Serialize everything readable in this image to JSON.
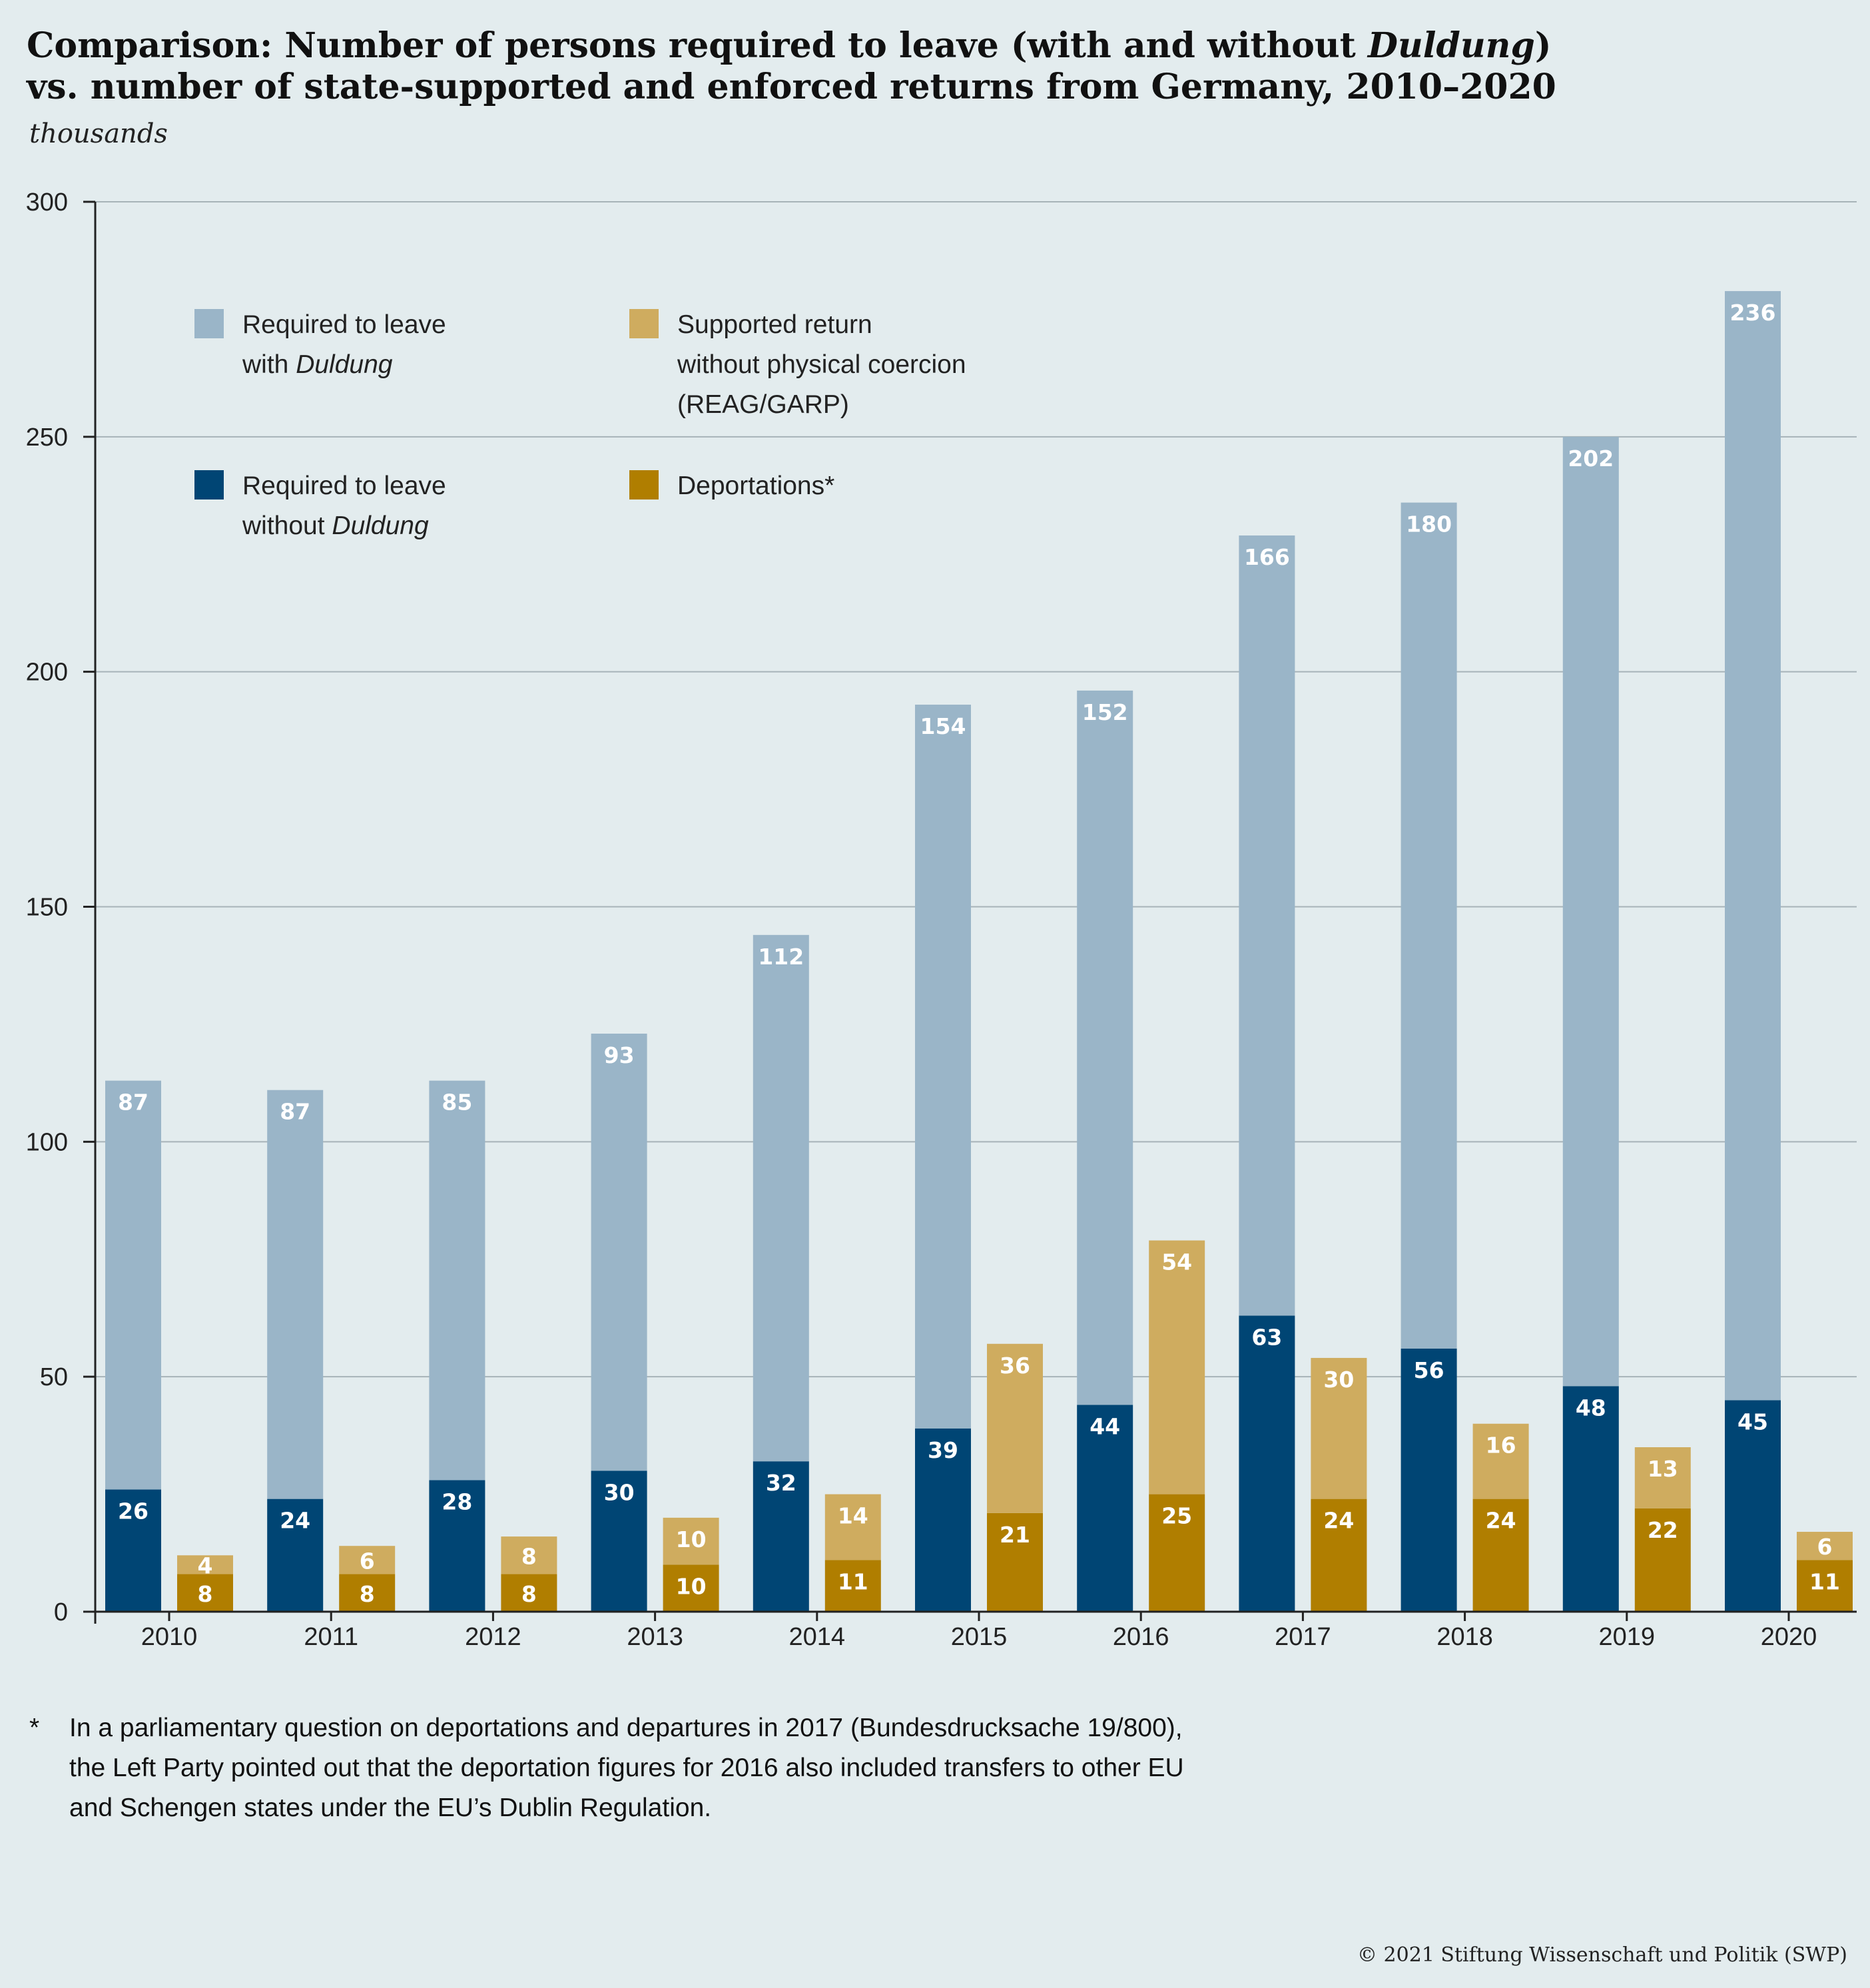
{
  "title_line1_pre": "Comparison: Number of persons required to leave (with and without ",
  "title_line1_ital": "Duldung",
  "title_line1_post": ")",
  "title_line2": "vs. number of state-supported and enforced returns from Germany, 2010–2020",
  "subtitle": "thousands",
  "legend": {
    "with_duldung_l1": "Required to leave",
    "with_duldung_l2_pre": "with ",
    "with_duldung_l2_ital": "Duldung",
    "without_duldung_l1": "Required to leave",
    "without_duldung_l2_pre": "without ",
    "without_duldung_l2_ital": "Duldung",
    "supported_l1": "Supported return",
    "supported_l2": "without physical coercion",
    "supported_l3": "(REAG/GARP)",
    "deportations": "Deportations*"
  },
  "footnote": {
    "star": "*",
    "line1": "In a parliamentary question on deportations and departures in 2017 (Bundesdrucksache 19/800),",
    "line2": "the Left Party pointed out that the deportation figures for 2016 also included transfers to other EU",
    "line3": "and Schengen states under the EU’s Dublin Regulation."
  },
  "copyright": "© 2021 Stiftung Wissenschaft und Politik (SWP)",
  "colors": {
    "with_duldung": "#9ab5c8",
    "without_duldung": "#004574",
    "supported_return": "#cfac5f",
    "deportations": "#b07e00",
    "gridline": "#a7b3b8",
    "axis": "#222222"
  },
  "chart_data": {
    "type": "bar",
    "stacked": true,
    "ylim": [
      0,
      300
    ],
    "yticks": [
      0,
      50,
      100,
      150,
      200,
      250,
      300
    ],
    "grid": true,
    "legend_position": "top-left",
    "categories": [
      "2010",
      "2011",
      "2012",
      "2013",
      "2014",
      "2015",
      "2016",
      "2017",
      "2018",
      "2019",
      "2020"
    ],
    "stacks": [
      {
        "stack": "required_to_leave",
        "series": [
          {
            "name": "Required to leave without Duldung",
            "color_key": "without_duldung",
            "values": [
              26,
              24,
              28,
              30,
              32,
              39,
              44,
              63,
              56,
              48,
              45
            ]
          },
          {
            "name": "Required to leave with Duldung",
            "color_key": "with_duldung",
            "values": [
              87,
              87,
              85,
              93,
              112,
              154,
              152,
              166,
              180,
              202,
              236
            ]
          }
        ]
      },
      {
        "stack": "returns",
        "series": [
          {
            "name": "Deportations*",
            "color_key": "deportations",
            "values": [
              8,
              8,
              8,
              10,
              11,
              21,
              25,
              24,
              24,
              22,
              11
            ]
          },
          {
            "name": "Supported return without physical coercion (REAG/GARP)",
            "color_key": "supported_return",
            "values": [
              4,
              6,
              8,
              10,
              14,
              36,
              54,
              30,
              16,
              13,
              6
            ]
          }
        ]
      }
    ]
  }
}
